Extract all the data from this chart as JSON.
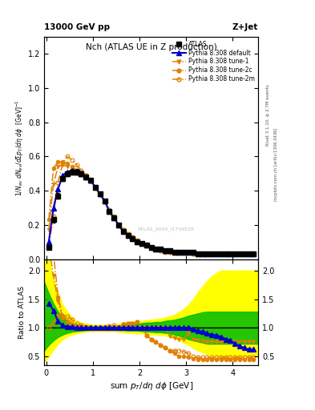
{
  "title_top": "13000 GeV pp",
  "title_right": "Z+Jet",
  "plot_title": "Nch (ATLAS UE in Z production)",
  "ylabel_main": "1/N_{ev} dN_{ev}/dsum p_{T}/dη dφ  [GeV]^{-1}",
  "ylabel_ratio": "Ratio to ATLAS",
  "watermark": "ATLAS_2019_I1739528",
  "rivet_text": "Rivet 3.1.10, ≥ 2.7M events",
  "arxiv_text": "mcplots.cern.ch [arXiv:1306.3436]",
  "atlas_x": [
    0.05,
    0.15,
    0.25,
    0.35,
    0.45,
    0.55,
    0.65,
    0.75,
    0.85,
    0.95,
    1.05,
    1.15,
    1.25,
    1.35,
    1.45,
    1.55,
    1.65,
    1.75,
    1.85,
    1.95,
    2.05,
    2.15,
    2.25,
    2.35,
    2.45,
    2.55,
    2.65,
    2.75,
    2.85,
    2.95,
    3.05,
    3.15,
    3.25,
    3.35,
    3.45,
    3.55,
    3.65,
    3.75,
    3.85,
    3.95,
    4.05,
    4.15,
    4.25,
    4.35,
    4.45
  ],
  "atlas_y": [
    0.07,
    0.23,
    0.37,
    0.47,
    0.5,
    0.51,
    0.51,
    0.5,
    0.48,
    0.46,
    0.42,
    0.38,
    0.34,
    0.28,
    0.24,
    0.2,
    0.16,
    0.14,
    0.12,
    0.1,
    0.09,
    0.08,
    0.07,
    0.06,
    0.06,
    0.05,
    0.05,
    0.04,
    0.04,
    0.04,
    0.04,
    0.04,
    0.03,
    0.03,
    0.03,
    0.03,
    0.03,
    0.03,
    0.03,
    0.03,
    0.03,
    0.03,
    0.03,
    0.03,
    0.03
  ],
  "atlas_err": [
    0.01,
    0.015,
    0.015,
    0.015,
    0.015,
    0.015,
    0.015,
    0.015,
    0.012,
    0.012,
    0.012,
    0.012,
    0.01,
    0.01,
    0.01,
    0.008,
    0.008,
    0.007,
    0.007,
    0.006,
    0.005,
    0.005,
    0.005,
    0.004,
    0.004,
    0.004,
    0.004,
    0.003,
    0.003,
    0.003,
    0.003,
    0.003,
    0.003,
    0.003,
    0.003,
    0.003,
    0.003,
    0.003,
    0.003,
    0.003,
    0.003,
    0.003,
    0.003,
    0.003,
    0.003
  ],
  "py_def_x": [
    0.05,
    0.15,
    0.25,
    0.35,
    0.45,
    0.55,
    0.65,
    0.75,
    0.85,
    0.95,
    1.05,
    1.15,
    1.25,
    1.35,
    1.45,
    1.55,
    1.65,
    1.75,
    1.85,
    1.95,
    2.05,
    2.15,
    2.25,
    2.35,
    2.45,
    2.55,
    2.65,
    2.75,
    2.85,
    2.95,
    3.05,
    3.15,
    3.25,
    3.35,
    3.45,
    3.55,
    3.65,
    3.75,
    3.85,
    3.95,
    4.05,
    4.15,
    4.25,
    4.35,
    4.45
  ],
  "py_def_y": [
    0.1,
    0.3,
    0.41,
    0.49,
    0.51,
    0.52,
    0.51,
    0.5,
    0.48,
    0.46,
    0.42,
    0.38,
    0.34,
    0.28,
    0.24,
    0.2,
    0.16,
    0.14,
    0.12,
    0.1,
    0.09,
    0.08,
    0.07,
    0.06,
    0.06,
    0.05,
    0.05,
    0.04,
    0.04,
    0.04,
    0.04,
    0.04,
    0.03,
    0.03,
    0.03,
    0.03,
    0.03,
    0.03,
    0.03,
    0.03,
    0.03,
    0.03,
    0.03,
    0.03,
    0.03
  ],
  "py_t1_x": [
    0.05,
    0.15,
    0.25,
    0.35,
    0.45,
    0.55,
    0.65,
    0.75,
    0.85,
    0.95,
    1.05,
    1.15,
    1.25,
    1.35,
    1.45,
    1.55,
    1.65,
    1.75,
    1.85,
    1.95,
    2.05,
    2.15,
    2.25,
    2.35,
    2.45,
    2.55,
    2.65,
    2.75,
    2.85,
    2.95,
    3.05,
    3.15,
    3.25,
    3.35,
    3.45,
    3.55,
    3.65,
    3.75,
    3.85,
    3.95,
    4.05,
    4.15,
    4.25,
    4.35,
    4.45
  ],
  "py_t1_y": [
    0.17,
    0.44,
    0.54,
    0.55,
    0.54,
    0.53,
    0.52,
    0.51,
    0.49,
    0.46,
    0.42,
    0.38,
    0.34,
    0.28,
    0.24,
    0.2,
    0.17,
    0.15,
    0.13,
    0.11,
    0.09,
    0.08,
    0.07,
    0.06,
    0.06,
    0.05,
    0.04,
    0.04,
    0.04,
    0.04,
    0.04,
    0.03,
    0.03,
    0.03,
    0.03,
    0.03,
    0.03,
    0.03,
    0.03,
    0.03,
    0.03,
    0.03,
    0.03,
    0.03,
    0.03
  ],
  "py_t2c_x": [
    0.05,
    0.15,
    0.25,
    0.35,
    0.45,
    0.55,
    0.65,
    0.75,
    0.85,
    0.95,
    1.05,
    1.15,
    1.25,
    1.35,
    1.45,
    1.55,
    1.65,
    1.75,
    1.85,
    1.95,
    2.05,
    2.15,
    2.25,
    2.35,
    2.45,
    2.55,
    2.65,
    2.75,
    2.85,
    2.95,
    3.05,
    3.15,
    3.25,
    3.35,
    3.45,
    3.55,
    3.65,
    3.75,
    3.85,
    3.95,
    4.05,
    4.15,
    4.25,
    4.35,
    4.45
  ],
  "py_t2c_y": [
    0.23,
    0.53,
    0.57,
    0.57,
    0.56,
    0.54,
    0.52,
    0.51,
    0.49,
    0.46,
    0.42,
    0.38,
    0.34,
    0.28,
    0.24,
    0.2,
    0.17,
    0.15,
    0.13,
    0.11,
    0.09,
    0.08,
    0.07,
    0.06,
    0.06,
    0.05,
    0.04,
    0.04,
    0.04,
    0.04,
    0.04,
    0.03,
    0.03,
    0.03,
    0.03,
    0.03,
    0.03,
    0.03,
    0.03,
    0.03,
    0.03,
    0.03,
    0.03,
    0.03,
    0.03
  ],
  "py_t2m_x": [
    0.05,
    0.15,
    0.25,
    0.35,
    0.45,
    0.55,
    0.65,
    0.75,
    0.85,
    0.95,
    1.05,
    1.15,
    1.25,
    1.35,
    1.45,
    1.55,
    1.65,
    1.75,
    1.85,
    1.95,
    2.05,
    2.15,
    2.25,
    2.35,
    2.45,
    2.55,
    2.65,
    2.75,
    2.85,
    2.95,
    3.05,
    3.15,
    3.25,
    3.35,
    3.45,
    3.55,
    3.65,
    3.75,
    3.85,
    3.95,
    4.05,
    4.15,
    4.25,
    4.35,
    4.45
  ],
  "py_t2m_y": [
    0.07,
    0.25,
    0.45,
    0.56,
    0.6,
    0.58,
    0.55,
    0.52,
    0.49,
    0.46,
    0.42,
    0.38,
    0.34,
    0.29,
    0.25,
    0.2,
    0.17,
    0.14,
    0.12,
    0.1,
    0.09,
    0.08,
    0.07,
    0.06,
    0.05,
    0.04,
    0.04,
    0.04,
    0.04,
    0.04,
    0.04,
    0.03,
    0.03,
    0.03,
    0.03,
    0.03,
    0.03,
    0.03,
    0.03,
    0.03,
    0.03,
    0.03,
    0.03,
    0.03,
    0.03
  ],
  "ratio_def_y": [
    1.43,
    1.3,
    1.11,
    1.04,
    1.02,
    1.02,
    1.0,
    1.0,
    1.0,
    1.0,
    1.0,
    1.0,
    1.0,
    1.0,
    1.0,
    1.0,
    1.0,
    1.0,
    1.0,
    1.0,
    1.0,
    1.0,
    1.0,
    1.0,
    1.0,
    1.0,
    1.0,
    1.0,
    1.0,
    1.0,
    1.0,
    0.97,
    0.95,
    0.93,
    0.9,
    0.88,
    0.87,
    0.84,
    0.8,
    0.78,
    0.72,
    0.68,
    0.65,
    0.62,
    0.62
  ],
  "ratio_t1_y": [
    2.43,
    1.91,
    1.46,
    1.17,
    1.08,
    1.04,
    1.02,
    1.02,
    1.01,
    1.0,
    1.0,
    1.0,
    1.0,
    1.0,
    1.0,
    1.0,
    1.06,
    1.07,
    1.08,
    1.1,
    1.0,
    1.0,
    1.0,
    1.0,
    1.0,
    1.0,
    0.85,
    0.82,
    0.8,
    0.8,
    0.9,
    0.8,
    0.78,
    0.76,
    0.75,
    0.75,
    0.75,
    0.75,
    0.75,
    0.75,
    0.75,
    0.75,
    0.75,
    0.75,
    0.75
  ],
  "ratio_t2c_y": [
    3.29,
    2.3,
    1.54,
    1.21,
    1.12,
    1.06,
    1.02,
    1.02,
    1.02,
    1.0,
    1.0,
    1.0,
    1.0,
    1.0,
    1.0,
    1.0,
    1.06,
    1.07,
    1.08,
    1.1,
    1.0,
    0.87,
    0.8,
    0.75,
    0.7,
    0.65,
    0.6,
    0.55,
    0.5,
    0.5,
    0.48,
    0.46,
    0.45,
    0.45,
    0.45,
    0.45,
    0.45,
    0.45,
    0.45,
    0.45,
    0.45,
    0.45,
    0.45,
    0.45,
    0.45
  ],
  "ratio_t2m_y": [
    1.0,
    1.09,
    1.22,
    1.19,
    1.2,
    1.14,
    1.08,
    1.04,
    1.02,
    1.0,
    1.0,
    1.0,
    1.0,
    1.03,
    1.04,
    1.0,
    1.06,
    1.0,
    1.0,
    1.0,
    1.0,
    0.87,
    0.8,
    0.75,
    0.7,
    0.65,
    0.6,
    0.6,
    0.6,
    0.58,
    0.55,
    0.5,
    0.48,
    0.48,
    0.48,
    0.48,
    0.48,
    0.48,
    0.48,
    0.48,
    0.48,
    0.48,
    0.48,
    0.48,
    0.48
  ],
  "band_x": [
    -0.05,
    0.05,
    0.15,
    0.25,
    0.35,
    0.45,
    0.55,
    0.65,
    0.75,
    0.85,
    0.95,
    1.05,
    1.15,
    1.25,
    1.35,
    1.45,
    1.55,
    1.65,
    1.75,
    1.85,
    1.95,
    2.05,
    2.15,
    2.25,
    2.35,
    2.45,
    2.55,
    2.65,
    2.75,
    2.85,
    2.95,
    3.05,
    3.15,
    3.25,
    3.35,
    3.45,
    3.55,
    3.65,
    3.75,
    3.85,
    3.95,
    4.05,
    4.15,
    4.25,
    4.35,
    4.45,
    4.55
  ],
  "band_yw_lo": [
    0.4,
    0.5,
    0.62,
    0.72,
    0.8,
    0.85,
    0.88,
    0.9,
    0.92,
    0.93,
    0.94,
    0.94,
    0.94,
    0.94,
    0.94,
    0.94,
    0.93,
    0.92,
    0.91,
    0.91,
    0.9,
    0.9,
    0.89,
    0.88,
    0.88,
    0.87,
    0.86,
    0.85,
    0.82,
    0.78,
    0.74,
    0.7,
    0.65,
    0.6,
    0.57,
    0.54,
    0.52,
    0.5,
    0.5,
    0.5,
    0.5,
    0.5,
    0.5,
    0.5,
    0.5,
    0.5,
    0.5
  ],
  "band_yw_hi": [
    2.5,
    2.2,
    1.85,
    1.6,
    1.4,
    1.28,
    1.18,
    1.12,
    1.09,
    1.07,
    1.06,
    1.05,
    1.05,
    1.05,
    1.05,
    1.05,
    1.07,
    1.09,
    1.1,
    1.11,
    1.11,
    1.12,
    1.13,
    1.14,
    1.15,
    1.16,
    1.18,
    1.2,
    1.23,
    1.28,
    1.33,
    1.4,
    1.5,
    1.62,
    1.72,
    1.82,
    1.9,
    1.96,
    2.0,
    2.0,
    2.0,
    2.0,
    2.0,
    2.0,
    2.0,
    2.0,
    2.0
  ],
  "band_gn_lo": [
    0.6,
    0.7,
    0.78,
    0.84,
    0.88,
    0.91,
    0.93,
    0.94,
    0.95,
    0.96,
    0.97,
    0.97,
    0.97,
    0.97,
    0.97,
    0.97,
    0.96,
    0.96,
    0.95,
    0.95,
    0.95,
    0.94,
    0.93,
    0.93,
    0.92,
    0.92,
    0.91,
    0.9,
    0.88,
    0.86,
    0.83,
    0.8,
    0.78,
    0.76,
    0.74,
    0.72,
    0.72,
    0.72,
    0.72,
    0.72,
    0.72,
    0.72,
    0.72,
    0.72,
    0.72,
    0.72,
    0.72
  ],
  "band_gn_hi": [
    1.8,
    1.6,
    1.42,
    1.28,
    1.18,
    1.12,
    1.08,
    1.06,
    1.05,
    1.04,
    1.03,
    1.03,
    1.03,
    1.03,
    1.03,
    1.03,
    1.04,
    1.05,
    1.06,
    1.06,
    1.07,
    1.08,
    1.09,
    1.09,
    1.1,
    1.1,
    1.12,
    1.13,
    1.14,
    1.16,
    1.18,
    1.21,
    1.23,
    1.25,
    1.27,
    1.28,
    1.28,
    1.28,
    1.28,
    1.28,
    1.28,
    1.28,
    1.28,
    1.28,
    1.28,
    1.28,
    1.28
  ],
  "color_atlas": "#000000",
  "color_def": "#0000cc",
  "color_tune": "#e08000",
  "color_yellow": "#ffff00",
  "color_green": "#00bb00",
  "xlim": [
    -0.05,
    4.55
  ],
  "ylim_main": [
    0.0,
    1.3
  ],
  "ylim_ratio": [
    0.35,
    2.2
  ],
  "main_yticks": [
    0.0,
    0.2,
    0.4,
    0.6,
    0.8,
    1.0,
    1.2
  ],
  "ratio_yticks": [
    0.5,
    1.0,
    1.5,
    2.0
  ],
  "xticks": [
    0,
    1,
    2,
    3,
    4
  ]
}
